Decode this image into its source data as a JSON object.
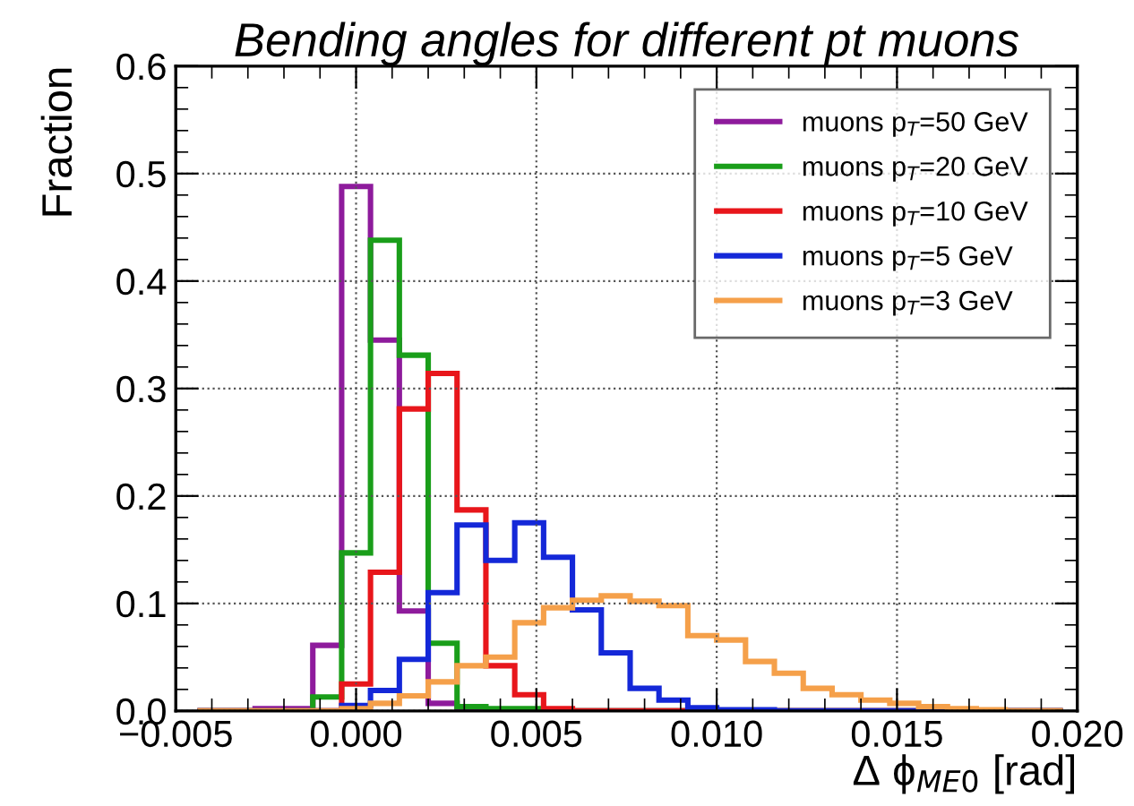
{
  "chart_data": {
    "type": "histogram",
    "title": "Bending angles for different pt muons",
    "xlabel": "Δ ϕ$_{ME0}$ [rad]",
    "ylabel": "Fraction",
    "bins": [
      -0.0044,
      -0.0036,
      -0.0028,
      -0.002,
      -0.0012,
      -0.0004,
      0.0004,
      0.0012,
      0.002,
      0.0028,
      0.0036,
      0.0044,
      0.0052,
      0.006,
      0.0068,
      0.0076,
      0.0084,
      0.0092,
      0.01,
      0.0108,
      0.0116,
      0.0124,
      0.0132,
      0.014,
      0.0148,
      0.0156,
      0.0164,
      0.0172,
      0.018,
      0.0188,
      0.0196
    ],
    "series": [
      {
        "name": "muons p$_{T}$=50 GeV",
        "color": "#8e1b9c",
        "values": [
          0,
          0,
          0.002,
          0.002,
          0.061,
          0.488,
          0.345,
          0.093,
          0.007,
          0.001,
          0,
          0,
          0,
          0,
          0,
          0,
          0,
          0,
          0,
          0,
          0,
          0,
          0,
          0,
          0,
          0,
          0,
          0,
          0,
          0
        ]
      },
      {
        "name": "muons p$_{T}$=20 GeV",
        "color": "#1a9e1a",
        "values": [
          0,
          0,
          0,
          0,
          0.013,
          0.147,
          0.438,
          0.331,
          0.063,
          0.004,
          0.002,
          0.002,
          0,
          0,
          0,
          0,
          0,
          0,
          0,
          0,
          0,
          0,
          0,
          0,
          0,
          0,
          0,
          0,
          0,
          0
        ]
      },
      {
        "name": "muons p$_{T}$=10 GeV",
        "color": "#e8161b",
        "values": [
          0,
          0,
          0,
          0,
          0,
          0.025,
          0.129,
          0.281,
          0.314,
          0.187,
          0.042,
          0.015,
          0.002,
          0,
          0,
          0,
          0,
          0,
          0,
          0,
          0,
          0,
          0,
          0,
          0,
          0,
          0,
          0,
          0,
          0
        ]
      },
      {
        "name": "muons p$_{T}$=5 GeV",
        "color": "#1428d8",
        "values": [
          0,
          0,
          0,
          0,
          0,
          0.005,
          0.019,
          0.048,
          0.11,
          0.173,
          0.14,
          0.175,
          0.143,
          0.094,
          0.054,
          0.021,
          0.01,
          0.003,
          0.001,
          0.001,
          0,
          0,
          0,
          0,
          0,
          0,
          0,
          0,
          0,
          0
        ]
      },
      {
        "name": "muons p$_{T}$=3 GeV",
        "color": "#f5a04a",
        "values": [
          0,
          0,
          0,
          0,
          0,
          0.002,
          0.007,
          0.014,
          0.027,
          0.042,
          0.05,
          0.082,
          0.096,
          0.103,
          0.107,
          0.102,
          0.098,
          0.07,
          0.066,
          0.046,
          0.035,
          0.021,
          0.015,
          0.01,
          0.007,
          0.004,
          0.002,
          0.001,
          0,
          0
        ]
      }
    ],
    "xlim": [
      -0.005,
      0.02
    ],
    "xticks": [
      {
        "value": -0.005,
        "label": "−0.005"
      },
      {
        "value": 0,
        "label": "0.000"
      },
      {
        "value": 0.005,
        "label": "0.005"
      },
      {
        "value": 0.01,
        "label": "0.010"
      },
      {
        "value": 0.015,
        "label": "0.015"
      },
      {
        "value": 0.02,
        "label": "0.020"
      }
    ],
    "ylim": [
      0,
      0.6
    ],
    "yticks": [
      {
        "value": 0,
        "label": "0.0"
      },
      0.1,
      0.2,
      0.3,
      0.4,
      0.5,
      0.6
    ],
    "grid": true,
    "legend": "top right",
    "line_style": "solid"
  }
}
